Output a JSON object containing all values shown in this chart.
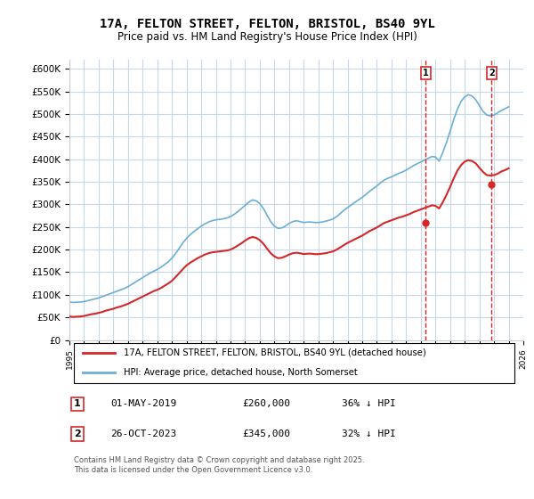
{
  "title": "17A, FELTON STREET, FELTON, BRISTOL, BS40 9YL",
  "subtitle": "Price paid vs. HM Land Registry's House Price Index (HPI)",
  "hpi_color": "#6baed6",
  "price_color": "#d62728",
  "dashed_color": "#d62728",
  "background_color": "#ffffff",
  "grid_color": "#c8d8e8",
  "ylim": [
    0,
    620000
  ],
  "yticks": [
    0,
    50000,
    100000,
    150000,
    200000,
    250000,
    300000,
    350000,
    400000,
    450000,
    500000,
    550000,
    600000
  ],
  "ytick_labels": [
    "£0",
    "£50K",
    "£100K",
    "£150K",
    "£200K",
    "£250K",
    "£300K",
    "£350K",
    "£400K",
    "£450K",
    "£500K",
    "£550K",
    "£600K"
  ],
  "xmin_year": 1995,
  "xmax_year": 2026,
  "xticks": [
    1995,
    1996,
    1997,
    1998,
    1999,
    2000,
    2001,
    2002,
    2003,
    2004,
    2005,
    2006,
    2007,
    2008,
    2009,
    2010,
    2011,
    2012,
    2013,
    2014,
    2015,
    2016,
    2017,
    2018,
    2019,
    2020,
    2021,
    2022,
    2023,
    2024,
    2025,
    2026
  ],
  "legend_label_price": "17A, FELTON STREET, FELTON, BRISTOL, BS40 9YL (detached house)",
  "legend_label_hpi": "HPI: Average price, detached house, North Somerset",
  "purchase1_x": 2019.33,
  "purchase1_y": 260000,
  "purchase1_label": "1",
  "purchase2_x": 2023.83,
  "purchase2_y": 345000,
  "purchase2_label": "2",
  "table_row1": [
    "1",
    "01-MAY-2019",
    "£260,000",
    "36% ↓ HPI"
  ],
  "table_row2": [
    "2",
    "26-OCT-2023",
    "£345,000",
    "32% ↓ HPI"
  ],
  "footer": "Contains HM Land Registry data © Crown copyright and database right 2025.\nThis data is licensed under the Open Government Licence v3.0.",
  "hpi_data_x": [
    1995.0,
    1995.25,
    1995.5,
    1995.75,
    1996.0,
    1996.25,
    1996.5,
    1996.75,
    1997.0,
    1997.25,
    1997.5,
    1997.75,
    1998.0,
    1998.25,
    1998.5,
    1998.75,
    1999.0,
    1999.25,
    1999.5,
    1999.75,
    2000.0,
    2000.25,
    2000.5,
    2000.75,
    2001.0,
    2001.25,
    2001.5,
    2001.75,
    2002.0,
    2002.25,
    2002.5,
    2002.75,
    2003.0,
    2003.25,
    2003.5,
    2003.75,
    2004.0,
    2004.25,
    2004.5,
    2004.75,
    2005.0,
    2005.25,
    2005.5,
    2005.75,
    2006.0,
    2006.25,
    2006.5,
    2006.75,
    2007.0,
    2007.25,
    2007.5,
    2007.75,
    2008.0,
    2008.25,
    2008.5,
    2008.75,
    2009.0,
    2009.25,
    2009.5,
    2009.75,
    2010.0,
    2010.25,
    2010.5,
    2010.75,
    2011.0,
    2011.25,
    2011.5,
    2011.75,
    2012.0,
    2012.25,
    2012.5,
    2012.75,
    2013.0,
    2013.25,
    2013.5,
    2013.75,
    2014.0,
    2014.25,
    2014.5,
    2014.75,
    2015.0,
    2015.25,
    2015.5,
    2015.75,
    2016.0,
    2016.25,
    2016.5,
    2016.75,
    2017.0,
    2017.25,
    2017.5,
    2017.75,
    2018.0,
    2018.25,
    2018.5,
    2018.75,
    2019.0,
    2019.25,
    2019.5,
    2019.75,
    2020.0,
    2020.25,
    2020.5,
    2020.75,
    2021.0,
    2021.25,
    2021.5,
    2021.75,
    2022.0,
    2022.25,
    2022.5,
    2022.75,
    2023.0,
    2023.25,
    2023.5,
    2023.75,
    2024.0,
    2024.25,
    2024.5,
    2024.75,
    2025.0
  ],
  "hpi_data_y": [
    84000,
    83000,
    83500,
    84000,
    85000,
    87000,
    89000,
    91000,
    93000,
    96000,
    99000,
    102000,
    105000,
    108000,
    111000,
    114000,
    118000,
    123000,
    128000,
    133000,
    138000,
    143000,
    148000,
    152000,
    156000,
    161000,
    167000,
    173000,
    181000,
    191000,
    203000,
    215000,
    225000,
    233000,
    240000,
    246000,
    252000,
    257000,
    261000,
    264000,
    266000,
    267000,
    268000,
    270000,
    273000,
    278000,
    284000,
    291000,
    298000,
    305000,
    310000,
    308000,
    302000,
    291000,
    276000,
    262000,
    252000,
    247000,
    248000,
    252000,
    258000,
    262000,
    264000,
    262000,
    260000,
    261000,
    261000,
    260000,
    260000,
    261000,
    263000,
    265000,
    268000,
    273000,
    280000,
    287000,
    293000,
    299000,
    305000,
    310000,
    316000,
    322000,
    329000,
    335000,
    341000,
    348000,
    354000,
    358000,
    361000,
    365000,
    369000,
    372000,
    376000,
    381000,
    386000,
    390000,
    394000,
    398000,
    402000,
    406000,
    405000,
    396000,
    415000,
    437000,
    462000,
    488000,
    511000,
    528000,
    538000,
    543000,
    540000,
    532000,
    519000,
    506000,
    498000,
    496000,
    498000,
    503000,
    508000,
    512000,
    516000
  ],
  "price_data_x": [
    1995.0,
    1995.25,
    1995.5,
    1995.75,
    1996.0,
    1996.25,
    1996.5,
    1996.75,
    1997.0,
    1997.25,
    1997.5,
    1997.75,
    1998.0,
    1998.25,
    1998.5,
    1998.75,
    1999.0,
    1999.25,
    1999.5,
    1999.75,
    2000.0,
    2000.25,
    2000.5,
    2000.75,
    2001.0,
    2001.25,
    2001.5,
    2001.75,
    2002.0,
    2002.25,
    2002.5,
    2002.75,
    2003.0,
    2003.25,
    2003.5,
    2003.75,
    2004.0,
    2004.25,
    2004.5,
    2004.75,
    2005.0,
    2005.25,
    2005.5,
    2005.75,
    2006.0,
    2006.25,
    2006.5,
    2006.75,
    2007.0,
    2007.25,
    2007.5,
    2007.75,
    2008.0,
    2008.25,
    2008.5,
    2008.75,
    2009.0,
    2009.25,
    2009.5,
    2009.75,
    2010.0,
    2010.25,
    2010.5,
    2010.75,
    2011.0,
    2011.25,
    2011.5,
    2011.75,
    2012.0,
    2012.25,
    2012.5,
    2012.75,
    2013.0,
    2013.25,
    2013.5,
    2013.75,
    2014.0,
    2014.25,
    2014.5,
    2014.75,
    2015.0,
    2015.25,
    2015.5,
    2015.75,
    2016.0,
    2016.25,
    2016.5,
    2016.75,
    2017.0,
    2017.25,
    2017.5,
    2017.75,
    2018.0,
    2018.25,
    2018.5,
    2018.75,
    2019.0,
    2019.25,
    2019.5,
    2019.75,
    2020.0,
    2020.25,
    2020.5,
    2020.75,
    2021.0,
    2021.25,
    2021.5,
    2021.75,
    2022.0,
    2022.25,
    2022.5,
    2022.75,
    2023.0,
    2023.25,
    2023.5,
    2023.75,
    2024.0,
    2024.25,
    2024.5,
    2024.75,
    2025.0
  ],
  "price_data_y": [
    52000,
    51000,
    51500,
    52000,
    53000,
    55000,
    57000,
    58000,
    60000,
    62000,
    65000,
    67000,
    69000,
    72000,
    74000,
    77000,
    80000,
    84000,
    88000,
    92000,
    96000,
    100000,
    104000,
    108000,
    111000,
    115000,
    120000,
    125000,
    131000,
    139000,
    148000,
    157000,
    165000,
    171000,
    176000,
    181000,
    185000,
    189000,
    192000,
    194000,
    195000,
    196000,
    197000,
    198000,
    200000,
    204000,
    209000,
    214000,
    220000,
    225000,
    228000,
    226000,
    221000,
    213000,
    202000,
    192000,
    185000,
    181000,
    182000,
    185000,
    189000,
    192000,
    193000,
    192000,
    190000,
    191000,
    191000,
    190000,
    190000,
    191000,
    192000,
    194000,
    196000,
    200000,
    205000,
    210000,
    215000,
    219000,
    223000,
    227000,
    231000,
    236000,
    241000,
    245000,
    249000,
    254000,
    259000,
    262000,
    265000,
    268000,
    271000,
    273000,
    276000,
    279000,
    283000,
    286000,
    289000,
    292000,
    295000,
    298000,
    297000,
    291000,
    305000,
    321000,
    339000,
    358000,
    375000,
    387000,
    395000,
    398000,
    396000,
    391000,
    381000,
    372000,
    365000,
    364000,
    365000,
    368000,
    373000,
    376000,
    380000
  ]
}
